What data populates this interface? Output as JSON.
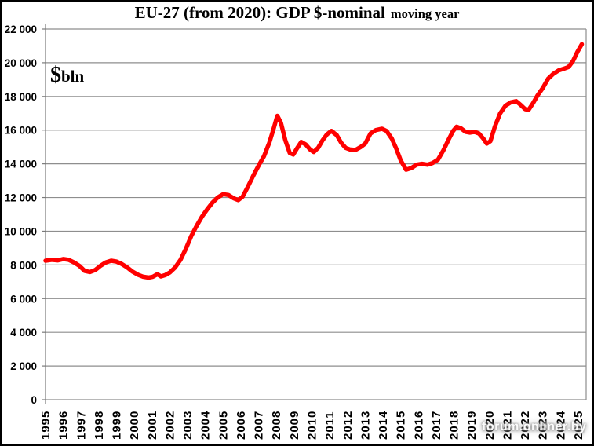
{
  "title": {
    "main": "EU-27 (from 2020): GDP $-nominal",
    "suffix": "moving year"
  },
  "unit_label": {
    "currency": "$",
    "unit": "bln"
  },
  "watermark": "forum.onliner.by",
  "colors": {
    "line": "#ff0000",
    "grid": "#8e8e8e",
    "axis": "#7a7a7a",
    "text": "#000000",
    "background": "#ffffff",
    "border": "#000000",
    "watermark": "#ffffff"
  },
  "chart_data": {
    "type": "line",
    "title": "EU-27 (from 2020): GDP $-nominal moving year",
    "xlabel": "",
    "ylabel": "$bln",
    "grid": "horizontal",
    "legend": "none",
    "y_axis": {
      "min": 0,
      "max": 22000,
      "step": 2000,
      "ticks": [
        {
          "value": 0,
          "label": "0"
        },
        {
          "value": 2000,
          "label": "2 000"
        },
        {
          "value": 4000,
          "label": "4 000"
        },
        {
          "value": 6000,
          "label": "6 000"
        },
        {
          "value": 8000,
          "label": "8 000"
        },
        {
          "value": 10000,
          "label": "10 000"
        },
        {
          "value": 12000,
          "label": "12 000"
        },
        {
          "value": 14000,
          "label": "14 000"
        },
        {
          "value": 16000,
          "label": "16 000"
        },
        {
          "value": 18000,
          "label": "18 000"
        },
        {
          "value": 20000,
          "label": "20 000"
        },
        {
          "value": 22000,
          "label": "22 000"
        }
      ]
    },
    "x_axis": {
      "min": 1995,
      "max": 2025.3,
      "years": [
        "1995",
        "1996",
        "1997",
        "1998",
        "1999",
        "2000",
        "2001",
        "2002",
        "2003",
        "2004",
        "2005",
        "2006",
        "2007",
        "2008",
        "2009",
        "2010",
        "2011",
        "2012",
        "2013",
        "2014",
        "2015",
        "2016",
        "2017",
        "2018",
        "2019",
        "2020",
        "2021",
        "2022",
        "2023",
        "2024",
        "2025"
      ]
    },
    "series": [
      {
        "name": "EU-27 GDP $-nominal, moving year ($bln)",
        "color": "#ff0000",
        "points": [
          [
            1995.0,
            8250
          ],
          [
            1995.35,
            8300
          ],
          [
            1995.7,
            8270
          ],
          [
            1996.0,
            8350
          ],
          [
            1996.3,
            8300
          ],
          [
            1996.6,
            8150
          ],
          [
            1996.9,
            7950
          ],
          [
            1997.2,
            7650
          ],
          [
            1997.5,
            7580
          ],
          [
            1997.8,
            7700
          ],
          [
            1998.1,
            7950
          ],
          [
            1998.4,
            8150
          ],
          [
            1998.7,
            8250
          ],
          [
            1999.0,
            8200
          ],
          [
            1999.3,
            8050
          ],
          [
            1999.6,
            7850
          ],
          [
            1999.9,
            7600
          ],
          [
            2000.2,
            7420
          ],
          [
            2000.5,
            7300
          ],
          [
            2000.8,
            7250
          ],
          [
            2001.05,
            7300
          ],
          [
            2001.3,
            7450
          ],
          [
            2001.5,
            7320
          ],
          [
            2001.75,
            7400
          ],
          [
            2002.0,
            7550
          ],
          [
            2002.3,
            7850
          ],
          [
            2002.6,
            8300
          ],
          [
            2002.9,
            8950
          ],
          [
            2003.2,
            9700
          ],
          [
            2003.5,
            10300
          ],
          [
            2003.8,
            10850
          ],
          [
            2004.1,
            11300
          ],
          [
            2004.4,
            11700
          ],
          [
            2004.7,
            12000
          ],
          [
            2005.0,
            12200
          ],
          [
            2005.3,
            12150
          ],
          [
            2005.6,
            11950
          ],
          [
            2005.85,
            11850
          ],
          [
            2006.1,
            12050
          ],
          [
            2006.4,
            12650
          ],
          [
            2006.7,
            13300
          ],
          [
            2007.0,
            13900
          ],
          [
            2007.3,
            14450
          ],
          [
            2007.6,
            15250
          ],
          [
            2007.85,
            16100
          ],
          [
            2008.05,
            16850
          ],
          [
            2008.25,
            16450
          ],
          [
            2008.5,
            15400
          ],
          [
            2008.75,
            14650
          ],
          [
            2008.95,
            14550
          ],
          [
            2009.15,
            14900
          ],
          [
            2009.4,
            15300
          ],
          [
            2009.65,
            15150
          ],
          [
            2009.9,
            14850
          ],
          [
            2010.1,
            14700
          ],
          [
            2010.35,
            14950
          ],
          [
            2010.6,
            15400
          ],
          [
            2010.85,
            15750
          ],
          [
            2011.1,
            15950
          ],
          [
            2011.4,
            15700
          ],
          [
            2011.65,
            15250
          ],
          [
            2011.9,
            14950
          ],
          [
            2012.15,
            14850
          ],
          [
            2012.45,
            14820
          ],
          [
            2012.75,
            15000
          ],
          [
            2013.0,
            15200
          ],
          [
            2013.3,
            15800
          ],
          [
            2013.6,
            16000
          ],
          [
            2013.95,
            16080
          ],
          [
            2014.2,
            15950
          ],
          [
            2014.5,
            15500
          ],
          [
            2014.75,
            14900
          ],
          [
            2015.0,
            14200
          ],
          [
            2015.3,
            13650
          ],
          [
            2015.6,
            13750
          ],
          [
            2015.9,
            13950
          ],
          [
            2016.2,
            14000
          ],
          [
            2016.5,
            13950
          ],
          [
            2016.8,
            14050
          ],
          [
            2017.1,
            14250
          ],
          [
            2017.4,
            14800
          ],
          [
            2017.7,
            15450
          ],
          [
            2017.95,
            15950
          ],
          [
            2018.15,
            16200
          ],
          [
            2018.4,
            16100
          ],
          [
            2018.65,
            15900
          ],
          [
            2018.9,
            15850
          ],
          [
            2019.15,
            15900
          ],
          [
            2019.4,
            15800
          ],
          [
            2019.65,
            15500
          ],
          [
            2019.85,
            15200
          ],
          [
            2020.05,
            15350
          ],
          [
            2020.3,
            16200
          ],
          [
            2020.6,
            17000
          ],
          [
            2020.9,
            17450
          ],
          [
            2021.2,
            17650
          ],
          [
            2021.5,
            17720
          ],
          [
            2021.75,
            17500
          ],
          [
            2022.0,
            17250
          ],
          [
            2022.2,
            17200
          ],
          [
            2022.45,
            17600
          ],
          [
            2022.7,
            18050
          ],
          [
            2023.0,
            18500
          ],
          [
            2023.3,
            19050
          ],
          [
            2023.6,
            19350
          ],
          [
            2023.9,
            19550
          ],
          [
            2024.2,
            19650
          ],
          [
            2024.45,
            19750
          ],
          [
            2024.7,
            20100
          ],
          [
            2024.95,
            20650
          ],
          [
            2025.2,
            21100
          ]
        ]
      }
    ]
  }
}
